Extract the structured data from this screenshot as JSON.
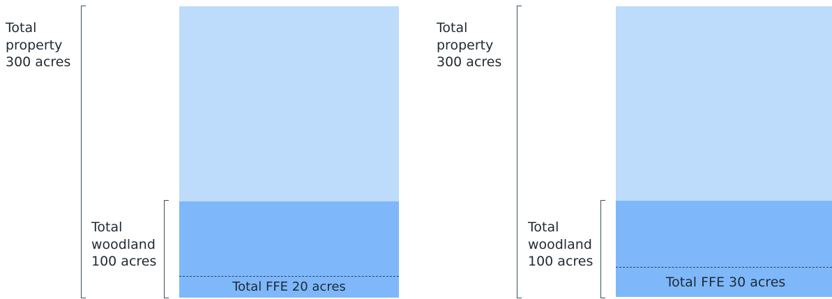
{
  "panels": [
    {
      "property_label": [
        "Total",
        "property",
        "300 acres"
      ],
      "woodland_label": [
        "Total",
        "woodland",
        "100 acres"
      ],
      "ffe_label": "Total FFE 20 acres",
      "property_acres": 300,
      "woodland_acres": 100,
      "ffe_acres": 20
    },
    {
      "property_label": [
        "Total",
        "property",
        "300 acres"
      ],
      "woodland_label": [
        "Total",
        "woodland",
        "100 acres"
      ],
      "ffe_label": "Total FFE 30 acres",
      "property_acres": 300,
      "woodland_acres": 100,
      "ffe_acres": 30
    }
  ],
  "colors": {
    "property": "#bddbfb",
    "woodland": "#7eb8fb",
    "bracket": "#3d4f5c",
    "ffe_line": "#2d3e52"
  }
}
